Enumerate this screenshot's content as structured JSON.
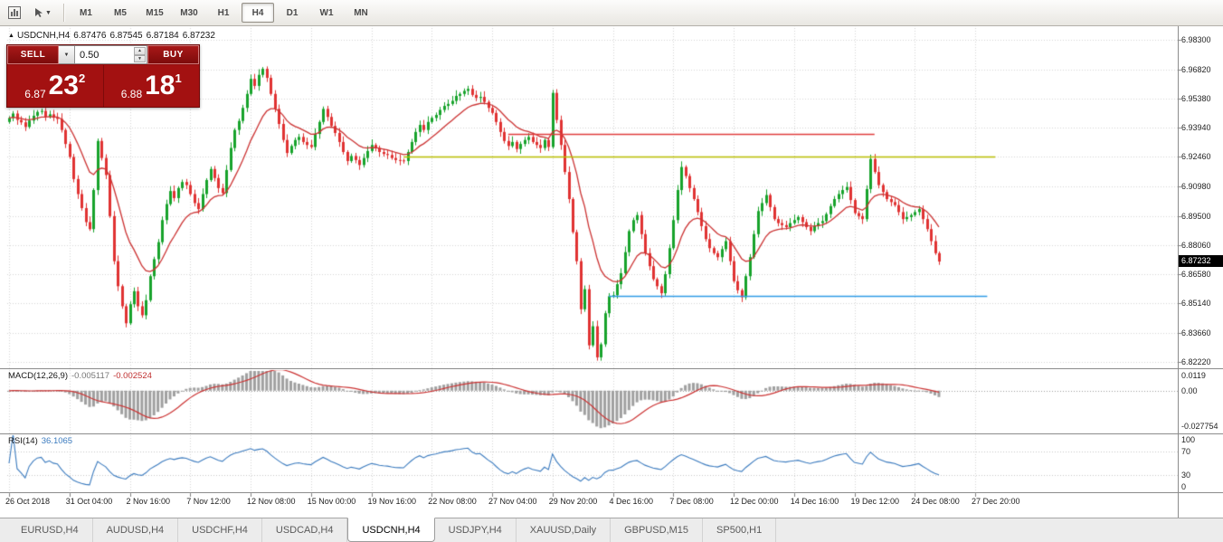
{
  "glyphs": {
    "up_triangle": "▲",
    "caret_down": "▼",
    "spin_up": "▲",
    "spin_down": "▼"
  },
  "toolbar": {
    "timeframes": [
      {
        "label": "M1",
        "active": false
      },
      {
        "label": "M5",
        "active": false
      },
      {
        "label": "M15",
        "active": false
      },
      {
        "label": "M30",
        "active": false
      },
      {
        "label": "H1",
        "active": false
      },
      {
        "label": "H4",
        "active": true
      },
      {
        "label": "D1",
        "active": false
      },
      {
        "label": "W1",
        "active": false
      },
      {
        "label": "MN",
        "active": false
      }
    ]
  },
  "chart": {
    "header": {
      "symbol": "USDCNH,H4",
      "open": "6.87476",
      "high": "6.87545",
      "low": "6.87184",
      "close": "6.87232"
    },
    "trade_panel": {
      "sell_label": "SELL",
      "buy_label": "BUY",
      "lot_value": "0.50",
      "sell_price_prefix": "6.87",
      "sell_price_big": "23",
      "sell_price_sup": "2",
      "buy_price_prefix": "6.88",
      "buy_price_big": "18",
      "buy_price_sup": "1"
    },
    "price_axis": [
      "6.98300",
      "6.96820",
      "6.95380",
      "6.93940",
      "6.92460",
      "6.90980",
      "6.89500",
      "6.88060",
      "6.86580",
      "6.85140",
      "6.83660",
      "6.82220"
    ],
    "price_badge": "6.87232"
  },
  "macd_panel": {
    "label": "MACD(12,26,9)",
    "value_main": "-0.005117",
    "value_signal": "-0.002524",
    "axis": [
      "0.0119",
      "0.00",
      "-0.027754"
    ]
  },
  "rsi_panel": {
    "label": "RSI(14)",
    "value": "36.1065",
    "axis": [
      "100",
      "70",
      "30",
      "0"
    ]
  },
  "tabs": [
    {
      "label": "EURUSD,H4",
      "active": false
    },
    {
      "label": "AUDUSD,H4",
      "active": false
    },
    {
      "label": "USDCHF,H4",
      "active": false
    },
    {
      "label": "USDCAD,H4",
      "active": false
    },
    {
      "label": "USDCNH,H4",
      "active": true
    },
    {
      "label": "USDJPY,H4",
      "active": false
    },
    {
      "label": "XAUUSD,Daily",
      "active": false
    },
    {
      "label": "GBPUSD,M15",
      "active": false
    },
    {
      "label": "SP500,H1",
      "active": false
    }
  ],
  "chart_data": {
    "type": "candlestick",
    "symbol": "USDCNH",
    "timeframe": "H4",
    "ohlc_header": {
      "open": 6.87476,
      "high": 6.87545,
      "low": 6.87184,
      "close": 6.87232
    },
    "ylim": [
      6.8222,
      6.983
    ],
    "price_ticks": [
      6.983,
      6.9682,
      6.9538,
      6.9394,
      6.9246,
      6.9098,
      6.895,
      6.8806,
      6.8658,
      6.8514,
      6.8366,
      6.8222
    ],
    "up_color": "#17a32b",
    "down_color": "#e03232",
    "first_open": 6.942,
    "closes": [
      6.944,
      6.9462,
      6.943,
      6.9418,
      6.9395,
      6.9427,
      6.9451,
      6.947,
      6.9475,
      6.9446,
      6.9458,
      6.9441,
      6.9435,
      6.938,
      6.931,
      6.9245,
      6.9135,
      6.906,
      6.899,
      6.892,
      6.8885,
      6.908,
      6.9325,
      6.924,
      6.9155,
      6.895,
      6.8725,
      6.86,
      6.85,
      6.8415,
      6.851,
      6.8575,
      6.85,
      6.8455,
      6.853,
      6.865,
      6.8735,
      6.882,
      6.893,
      6.901,
      6.9075,
      6.904,
      6.909,
      6.912,
      6.9105,
      6.906,
      6.9015,
      6.8985,
      6.906,
      6.913,
      6.9185,
      6.914,
      6.909,
      6.9065,
      6.918,
      6.929,
      6.938,
      6.9425,
      6.949,
      6.956,
      6.9635,
      6.96,
      6.9655,
      6.9685,
      6.964,
      6.956,
      6.9485,
      6.941,
      6.933,
      6.9265,
      6.93,
      6.933,
      6.9345,
      6.932,
      6.9305,
      6.9295,
      6.936,
      6.942,
      6.9485,
      6.9445,
      6.94,
      6.9365,
      6.932,
      6.927,
      6.9225,
      6.925,
      6.923,
      6.9205,
      6.924,
      6.9275,
      6.9305,
      6.929,
      6.927,
      6.926,
      6.9255,
      6.924,
      6.923,
      6.9228,
      6.9225,
      6.927,
      6.932,
      6.937,
      6.9405,
      6.938,
      6.942,
      6.944,
      6.9455,
      6.948,
      6.95,
      6.951,
      6.9525,
      6.955,
      6.956,
      6.9575,
      6.9585,
      6.9555,
      6.954,
      6.9545,
      6.952,
      6.949,
      6.9465,
      6.942,
      6.937,
      6.9325,
      6.93,
      6.932,
      6.9285,
      6.931,
      6.933,
      6.9345,
      6.932,
      6.9305,
      6.929,
      6.933,
      6.9295,
      6.9565,
      6.943,
      6.9305,
      6.917,
      6.9035,
      6.887,
      6.8725,
      6.8485,
      6.8585,
      6.8305,
      6.84,
      6.8245,
      6.831,
      6.8465,
      6.855,
      6.8555,
      6.861,
      6.8665,
      6.877,
      6.8875,
      6.893,
      6.8955,
      6.886,
      6.8765,
      6.87,
      6.8635,
      6.86,
      6.8565,
      6.866,
      6.879,
      6.893,
      6.908,
      6.9195,
      6.915,
      6.909,
      6.9035,
      6.897,
      6.89,
      6.8835,
      6.879,
      6.8765,
      6.8745,
      6.8785,
      6.8825,
      6.8725,
      6.8625,
      6.858,
      6.8545,
      6.865,
      6.8745,
      6.886,
      6.8975,
      6.9015,
      6.9055,
      6.8995,
      6.8935,
      6.8915,
      6.8905,
      6.8895,
      6.8915,
      6.893,
      6.8945,
      6.892,
      6.8895,
      6.8875,
      6.89,
      6.8915,
      6.8925,
      6.896,
      6.9,
      6.9035,
      6.906,
      6.908,
      6.9095,
      6.903,
      6.8965,
      6.895,
      6.8935,
      6.9085,
      6.9235,
      6.917,
      6.9105,
      6.907,
      6.9035,
      6.902,
      6.9005,
      6.897,
      6.8935,
      6.8945,
      6.8955,
      6.897,
      6.8985,
      6.8935,
      6.8885,
      6.8825,
      6.8765,
      6.87232
    ],
    "time_labels": [
      {
        "label": "26 Oct 2018",
        "bar": 0
      },
      {
        "label": "31 Oct 04:00",
        "bar": 15
      },
      {
        "label": "2 Nov 16:00",
        "bar": 30
      },
      {
        "label": "7 Nov 12:00",
        "bar": 45
      },
      {
        "label": "12 Nov 08:00",
        "bar": 60
      },
      {
        "label": "15 Nov 00:00",
        "bar": 75
      },
      {
        "label": "19 Nov 16:00",
        "bar": 90
      },
      {
        "label": "22 Nov 08:00",
        "bar": 105
      },
      {
        "label": "27 Nov 04:00",
        "bar": 120
      },
      {
        "label": "29 Nov 20:00",
        "bar": 135
      },
      {
        "label": "4 Dec 16:00",
        "bar": 150
      },
      {
        "label": "7 Dec 08:00",
        "bar": 165
      },
      {
        "label": "12 Dec 00:00",
        "bar": 180
      },
      {
        "label": "14 Dec 16:00",
        "bar": 195
      },
      {
        "label": "19 Dec 12:00",
        "bar": 210
      },
      {
        "label": "24 Dec 08:00",
        "bar": 225
      },
      {
        "label": "27 Dec 20:00",
        "bar": 240
      }
    ],
    "trend_lines": [
      {
        "name": "resistance-red",
        "price": 6.936,
        "from_bar": 124,
        "to_bar": 215,
        "color": "#e03c3c"
      },
      {
        "name": "resistance-yellow",
        "price": 6.9246,
        "from_bar": 98,
        "to_bar": 245,
        "color": "#b9bd00"
      },
      {
        "name": "support-blue",
        "price": 6.855,
        "from_bar": 149,
        "to_bar": 243,
        "color": "#2e9be6"
      }
    ],
    "moving_average": {
      "period": 13,
      "color": "#cc3333"
    },
    "indicators": {
      "macd": {
        "params": "12,26,9",
        "main": -0.005117,
        "signal": -0.002524,
        "axis_max": 0.0119,
        "axis_min": -0.027754,
        "hist_color": "#a0a0a0",
        "signal_color": "#cc3333"
      },
      "rsi": {
        "period": 14,
        "value": 36.1065,
        "levels": [
          100,
          70,
          30,
          0
        ],
        "color": "#3b7bbf"
      }
    }
  }
}
